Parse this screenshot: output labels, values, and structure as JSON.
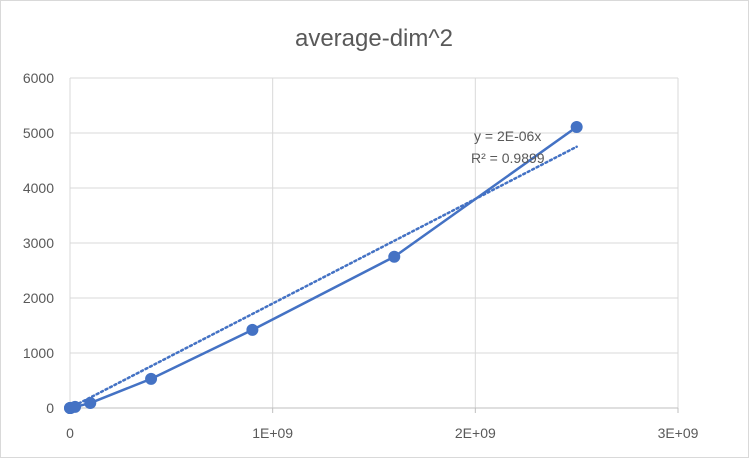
{
  "chart_data": {
    "type": "scatter",
    "title": "average-dim^2",
    "xlabel": "",
    "ylabel": "",
    "xlim": [
      0,
      3000000000
    ],
    "ylim": [
      0,
      6000
    ],
    "x_ticks": [
      0,
      1000000000,
      2000000000,
      3000000000
    ],
    "x_tick_labels": [
      "0",
      "1E+09",
      "2E+09",
      "3E+09"
    ],
    "y_ticks": [
      0,
      1000,
      2000,
      3000,
      4000,
      5000,
      6000
    ],
    "y_tick_labels": [
      "0",
      "1000",
      "2000",
      "3000",
      "4000",
      "5000",
      "6000"
    ],
    "grid": true,
    "legend": "none",
    "series": [
      {
        "color": "#4472c4",
        "marker": "circle",
        "line": "solid",
        "x": [
          100,
          10000,
          1000000,
          4000000,
          25000000,
          100000000,
          400000000,
          900000000,
          1600000000,
          2500000000
        ],
        "y": [
          0,
          0,
          1,
          3,
          20,
          90,
          530,
          1420,
          2750,
          5110
        ]
      }
    ],
    "trendline": {
      "type": "linear",
      "style": "dotted",
      "color": "#4472c4",
      "slope": 1.9e-06,
      "intercept": 0,
      "x_range": [
        0,
        2500000000
      ],
      "equation": "y = 2E-06x",
      "r_squared": "R² = 0.9899"
    }
  }
}
